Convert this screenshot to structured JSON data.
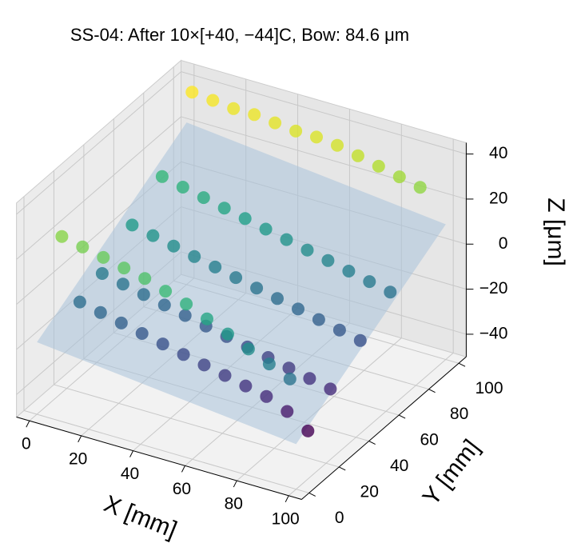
{
  "chart_data": {
    "type": "scatter3d",
    "title": "SS-04: After 10×[+40, −44]C, Bow: 84.6 μm",
    "xlabel": "X [mm]",
    "ylabel": "Y [mm]",
    "zlabel": "Z [μm]",
    "xlim": [
      -5,
      105
    ],
    "ylim": [
      -5,
      105
    ],
    "zlim": [
      -50,
      45
    ],
    "xticks": [
      0,
      20,
      40,
      60,
      80,
      100
    ],
    "yticks": [
      0,
      20,
      40,
      60,
      80,
      100
    ],
    "zticks": [
      {
        "value": -40,
        "label": "−40"
      },
      {
        "value": -20,
        "label": "−20"
      },
      0,
      20,
      40
    ],
    "colormap": "viridis",
    "grid": true,
    "x": [
      5,
      13,
      21,
      29,
      37,
      45,
      53,
      61,
      69,
      77,
      85,
      93,
      5,
      13,
      21,
      29,
      37,
      45,
      53,
      61,
      69,
      77,
      85,
      93,
      5,
      13,
      21,
      29,
      37,
      45,
      53,
      61,
      69,
      77,
      85,
      93,
      5,
      13,
      21,
      29,
      37,
      45,
      53,
      61,
      69,
      77,
      85,
      93,
      5,
      13,
      21,
      29,
      37,
      45,
      53,
      61,
      69,
      77,
      85,
      93,
      5,
      13,
      21,
      29,
      37,
      45,
      53,
      61,
      69,
      77,
      85,
      93
    ],
    "y": [
      95,
      95,
      95,
      95,
      95,
      95,
      95,
      95,
      95,
      95,
      95,
      95,
      75,
      75,
      75,
      75,
      75,
      75,
      75,
      75,
      75,
      75,
      75,
      75,
      55,
      55,
      55,
      55,
      55,
      55,
      55,
      55,
      55,
      55,
      55,
      55,
      35,
      35,
      35,
      35,
      35,
      35,
      35,
      35,
      35,
      35,
      35,
      35,
      8,
      8,
      8,
      8,
      8,
      8,
      8,
      8,
      8,
      8,
      8,
      8,
      20,
      20,
      20,
      20,
      20,
      20,
      20,
      20,
      20,
      20,
      20,
      20
    ],
    "z": [
      40,
      39,
      38,
      38,
      37,
      36,
      36,
      35,
      33,
      31,
      29,
      27,
      14,
      12,
      10,
      8,
      6,
      4,
      2,
      0,
      -2,
      -4,
      -6,
      -8,
      4,
      2,
      0,
      -2,
      -4,
      -6,
      -8,
      -10,
      -12,
      -14,
      -16,
      -18,
      -6,
      -8,
      -10,
      -12,
      -14,
      -16,
      -18,
      -20,
      -22,
      -24,
      -26,
      -28,
      26,
      24,
      22,
      20,
      18,
      15,
      12,
      8,
      4,
      0,
      -4,
      -8,
      -10,
      -12,
      -14,
      -16,
      -18,
      -20,
      -22,
      -24,
      -26,
      -28,
      -32,
      -38
    ],
    "plane": {
      "x": [
        0,
        100,
        100,
        0
      ],
      "y": [
        0,
        0,
        100,
        100
      ],
      "z": [
        -18,
        -30,
        10,
        22
      ],
      "color": "#a9c3da"
    }
  }
}
